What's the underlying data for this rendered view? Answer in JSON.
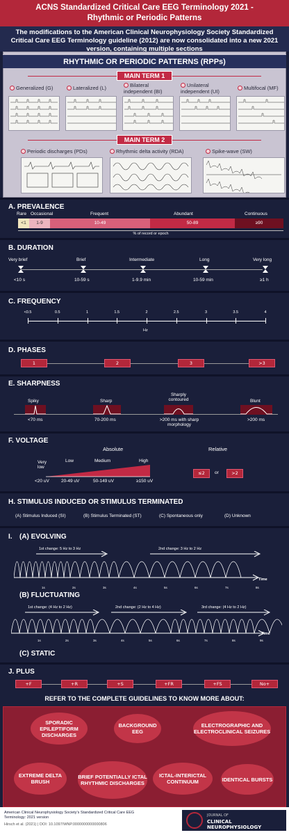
{
  "header": {
    "title_line1": "ACNS Standardized Critical Care EEG Terminology 2021 -",
    "title_line2": "Rhythmic or Periodic Patterns"
  },
  "intro": {
    "line1": "The modifications to the American Clinical Neurophysiology Society Standardized",
    "line2": "Critical Care EEG Terminology guideline (2012) are now consolidated into a new 2021",
    "line3": "version, containing multiple sections"
  },
  "rpp": {
    "banner": "RHYTHMIC OR PERIODIC PATTERNS (RPPs)",
    "main_term_1": "MAIN TERM 1",
    "main_term_2": "MAIN TERM 2",
    "term1_items": [
      "Generalized (G)",
      "Lateralized (L)",
      "Bilateral independent (BI)",
      "Unilateral independent (UI)",
      "Multifocal (MF)"
    ],
    "term2_items": [
      "Periodic discharges (PDs)",
      "Rhythmic delta activity (RDA)",
      "Spike-wave (SW)"
    ]
  },
  "prevalence": {
    "title": "A. PREVALENCE",
    "labels": [
      "Rare",
      "Occasional",
      "Frequent",
      "Abundant",
      "Continuous"
    ],
    "ranges": [
      "<1",
      "1-9",
      "10-49",
      "50-89",
      "≥90"
    ],
    "axis": "% of record or epoch"
  },
  "duration": {
    "title": "B. DURATION",
    "labels": [
      "Very brief",
      "Brief",
      "Intermediate",
      "Long",
      "Very long"
    ],
    "values": [
      "<10 s",
      "10-59 s",
      "1-9.9 min",
      "10-59 min",
      "≥1 h"
    ]
  },
  "frequency": {
    "title": "C. FREQUENCY",
    "ticks": [
      "<0.5",
      "0.5",
      "1",
      "1.5",
      "2",
      "2.5",
      "3",
      "3.5",
      "4"
    ],
    "unit": "Hz"
  },
  "phases": {
    "title": "D. PHASES",
    "items": [
      "1",
      "2",
      "3",
      ">3"
    ]
  },
  "sharpness": {
    "title": "E. SHARPNESS",
    "labels": [
      "Spiky",
      "Sharp",
      "Sharply contoured",
      "Blunt"
    ],
    "values": [
      "<70 ms",
      "70-200 ms",
      ">200 ms with sharp morphology",
      ">200 ms"
    ]
  },
  "voltage": {
    "title": "F. VOLTAGE",
    "absolute": "Absolute",
    "relative": "Relative",
    "levels": [
      "Very low",
      "Low",
      "Medium",
      "High"
    ],
    "values": [
      "<20 uV",
      "20-49 uV",
      "50-149 uV",
      "≥150 uV"
    ],
    "rel_a": "≤2",
    "rel_or": "or",
    "rel_b": ">2"
  },
  "stimulus": {
    "title": "H. STIMULUS INDUCED OR STIMULUS TERMINATED",
    "items": [
      "(A) Stimulus Induced (SI)",
      "(B) Stimulus Terminated (ST)",
      "(C) Spontaneous only",
      "(D) Unknown"
    ]
  },
  "evolving": {
    "title_i": "I.",
    "title": "(A) EVOLVING",
    "change1": "1st change: 5 Hz to 3 Hz",
    "change2": "2nd change: 3 Hz to 2 Hz",
    "time": "Time",
    "ticks": [
      "1s",
      "2s",
      "3s",
      "4s",
      "5s",
      "6s",
      "7s",
      "8s"
    ]
  },
  "fluctuating": {
    "title": "(B) FLUCTUATING",
    "change1": "1st change: (4 Hz to 2 Hz)",
    "change2": "2nd change: (2 Hz to 4 Hz)",
    "change3": "3rd change: (4 Hz to 2 Hz)",
    "time": "Time",
    "ticks": [
      "1s",
      "2s",
      "3s",
      "4s",
      "5s",
      "6s",
      "7s",
      "8s",
      "9s"
    ]
  },
  "static": {
    "title": "(C) STATIC"
  },
  "plus": {
    "title": "J. PLUS",
    "items": [
      "+F",
      "+R",
      "+S",
      "+FR",
      "+FS",
      "No+"
    ]
  },
  "refer": {
    "title": "REFER TO THE COMPLETE GUIDELINES TO KNOW MORE ABOUT:",
    "items": [
      "SPORADIC EPILEPTIFORM DISCHARGES",
      "BACKGROUND EEG",
      "ELECTROGRAPHIC AND ELECTROCLINICAL SEIZURES",
      "EXTREME DELTA BRUSH",
      "BRIEF POTENTIALLY ICTAL RHYTHMIC DISCHARGES",
      "ICTAL-INTERICTAL CONTINUUM",
      "IDENTICAL BURSTS"
    ]
  },
  "footer": {
    "line1": "American Clinical Neurophysiology Society's Standardized Critical Care EEG",
    "line2": "Terminology: 2021 version",
    "line3": "Hirsch et al. (2021) | DOI: 10.1097/WNP.0000000000000806",
    "journal_top": "JOURNAL OF",
    "journal_name": "CLINICAL NEUROPHYSIOLOGY"
  },
  "colors": {
    "accent": "#b3273a",
    "navy": "#1a1f3a"
  }
}
